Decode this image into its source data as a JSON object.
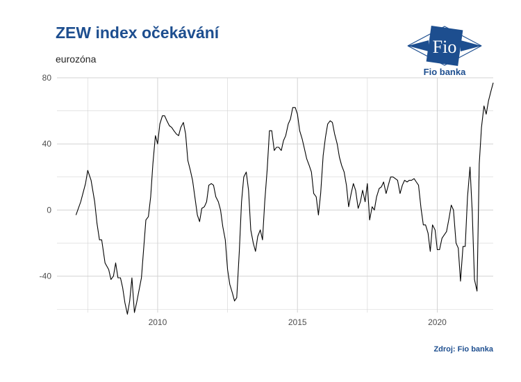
{
  "header": {
    "title": "ZEW index očekávání",
    "subtitle": "eurozóna"
  },
  "logo": {
    "mark_text": "Fio",
    "name": "Fio banka",
    "color": "#1d4e8f"
  },
  "footer": {
    "source": "Zdroj: Fio banka"
  },
  "colors": {
    "line": "#000000",
    "grid": "#d3d3d3",
    "brand": "#1d4e8f"
  },
  "chart_data": {
    "type": "line",
    "title": "ZEW index očekávání",
    "subtitle": "eurozóna",
    "xlabel": "",
    "ylabel": "",
    "xlim": [
      2006.4,
      2022.0
    ],
    "ylim": [
      -62,
      80
    ],
    "x_ticks": [
      2010,
      2015,
      2020
    ],
    "y_ticks": [
      80,
      40,
      0,
      -40
    ],
    "grid": true,
    "series": [
      {
        "values": [
          [
            2007.08,
            -3
          ],
          [
            2007.25,
            5
          ],
          [
            2007.42,
            16
          ],
          [
            2007.5,
            24
          ],
          [
            2007.62,
            18
          ],
          [
            2007.75,
            5
          ],
          [
            2007.83,
            -8
          ],
          [
            2007.92,
            -18
          ],
          [
            2008.0,
            -18
          ],
          [
            2008.12,
            -32
          ],
          [
            2008.25,
            -36
          ],
          [
            2008.33,
            -42
          ],
          [
            2008.42,
            -40
          ],
          [
            2008.5,
            -32
          ],
          [
            2008.58,
            -41
          ],
          [
            2008.67,
            -41
          ],
          [
            2008.75,
            -47
          ],
          [
            2008.83,
            -56
          ],
          [
            2008.92,
            -63
          ],
          [
            2009.0,
            -55
          ],
          [
            2009.08,
            -41
          ],
          [
            2009.17,
            -62
          ],
          [
            2009.25,
            -56
          ],
          [
            2009.42,
            -41
          ],
          [
            2009.58,
            -6
          ],
          [
            2009.67,
            -4
          ],
          [
            2009.75,
            8
          ],
          [
            2009.83,
            28
          ],
          [
            2009.92,
            45
          ],
          [
            2010.0,
            40
          ],
          [
            2010.08,
            52
          ],
          [
            2010.17,
            57
          ],
          [
            2010.25,
            57
          ],
          [
            2010.33,
            54
          ],
          [
            2010.42,
            51
          ],
          [
            2010.5,
            50
          ],
          [
            2010.58,
            48
          ],
          [
            2010.67,
            46
          ],
          [
            2010.75,
            45
          ],
          [
            2010.83,
            50
          ],
          [
            2010.92,
            53
          ],
          [
            2011.0,
            46
          ],
          [
            2011.08,
            30
          ],
          [
            2011.17,
            24
          ],
          [
            2011.25,
            18
          ],
          [
            2011.33,
            8
          ],
          [
            2011.42,
            -3
          ],
          [
            2011.5,
            -7
          ],
          [
            2011.58,
            1
          ],
          [
            2011.67,
            2
          ],
          [
            2011.75,
            5
          ],
          [
            2011.83,
            15
          ],
          [
            2011.92,
            16
          ],
          [
            2012.0,
            15
          ],
          [
            2012.08,
            8
          ],
          [
            2012.17,
            5
          ],
          [
            2012.25,
            0
          ],
          [
            2012.33,
            -10
          ],
          [
            2012.42,
            -18
          ],
          [
            2012.5,
            -36
          ],
          [
            2012.58,
            -45
          ],
          [
            2012.67,
            -50
          ],
          [
            2012.75,
            -55
          ],
          [
            2012.83,
            -53
          ],
          [
            2012.92,
            -25
          ],
          [
            2013.0,
            5
          ],
          [
            2013.08,
            20
          ],
          [
            2013.17,
            23
          ],
          [
            2013.25,
            12
          ],
          [
            2013.33,
            -12
          ],
          [
            2013.42,
            -20
          ],
          [
            2013.5,
            -25
          ],
          [
            2013.58,
            -16
          ],
          [
            2013.67,
            -12
          ],
          [
            2013.75,
            -18
          ],
          [
            2013.83,
            5
          ],
          [
            2013.92,
            25
          ],
          [
            2014.0,
            48
          ],
          [
            2014.08,
            48
          ],
          [
            2014.17,
            36
          ],
          [
            2014.25,
            38
          ],
          [
            2014.33,
            38
          ],
          [
            2014.42,
            36
          ],
          [
            2014.5,
            42
          ],
          [
            2014.58,
            45
          ],
          [
            2014.67,
            52
          ],
          [
            2014.75,
            55
          ],
          [
            2014.83,
            62
          ],
          [
            2014.92,
            62
          ],
          [
            2015.0,
            58
          ],
          [
            2015.08,
            48
          ],
          [
            2015.17,
            43
          ],
          [
            2015.25,
            37
          ],
          [
            2015.33,
            31
          ],
          [
            2015.42,
            27
          ],
          [
            2015.5,
            23
          ],
          [
            2015.58,
            10
          ],
          [
            2015.67,
            8
          ],
          [
            2015.75,
            -3
          ],
          [
            2015.83,
            10
          ],
          [
            2015.92,
            33
          ],
          [
            2016.0,
            44
          ],
          [
            2016.08,
            52
          ],
          [
            2016.17,
            54
          ],
          [
            2016.25,
            53
          ],
          [
            2016.33,
            46
          ],
          [
            2016.42,
            40
          ],
          [
            2016.5,
            32
          ],
          [
            2016.58,
            27
          ],
          [
            2016.67,
            23
          ],
          [
            2016.75,
            15
          ],
          [
            2016.83,
            2
          ],
          [
            2016.92,
            10
          ],
          [
            2017.0,
            16
          ],
          [
            2017.08,
            12
          ],
          [
            2017.17,
            1
          ],
          [
            2017.25,
            5
          ],
          [
            2017.33,
            12
          ],
          [
            2017.42,
            5
          ],
          [
            2017.5,
            16
          ],
          [
            2017.58,
            -6
          ],
          [
            2017.67,
            2
          ],
          [
            2017.75,
            0
          ],
          [
            2017.83,
            8
          ],
          [
            2017.92,
            13
          ],
          [
            2018.0,
            14
          ],
          [
            2018.08,
            17
          ],
          [
            2018.17,
            10
          ],
          [
            2018.25,
            15
          ],
          [
            2018.33,
            20
          ],
          [
            2018.42,
            20
          ],
          [
            2018.5,
            19
          ],
          [
            2018.58,
            18
          ],
          [
            2018.67,
            10
          ],
          [
            2018.75,
            15
          ],
          [
            2018.83,
            18
          ],
          [
            2018.92,
            17
          ],
          [
            2019.0,
            18
          ],
          [
            2019.08,
            18
          ],
          [
            2019.17,
            19
          ],
          [
            2019.25,
            17
          ],
          [
            2019.33,
            15
          ],
          [
            2019.42,
            1
          ],
          [
            2019.5,
            -9
          ],
          [
            2019.58,
            -9
          ],
          [
            2019.67,
            -14
          ],
          [
            2019.75,
            -25
          ],
          [
            2019.83,
            -9
          ],
          [
            2019.92,
            -12
          ],
          [
            2020.0,
            -24
          ],
          [
            2020.08,
            -24
          ],
          [
            2020.17,
            -17
          ],
          [
            2020.25,
            -15
          ],
          [
            2020.33,
            -13
          ],
          [
            2020.42,
            -5
          ],
          [
            2020.5,
            3
          ],
          [
            2020.58,
            0
          ],
          [
            2020.67,
            -20
          ],
          [
            2020.75,
            -23
          ],
          [
            2020.83,
            -43
          ],
          [
            2020.92,
            -22
          ],
          [
            2021.0,
            -22
          ],
          [
            2021.08,
            8
          ],
          [
            2021.17,
            26
          ],
          [
            2021.25,
            -1
          ],
          [
            2021.33,
            -42
          ],
          [
            2021.42,
            -49
          ],
          [
            2021.5,
            28
          ],
          [
            2021.58,
            50
          ],
          [
            2021.67,
            63
          ],
          [
            2021.75,
            58
          ],
          [
            2021.83,
            66
          ],
          [
            2021.92,
            72
          ],
          [
            2022.0,
            77
          ]
        ]
      }
    ]
  }
}
